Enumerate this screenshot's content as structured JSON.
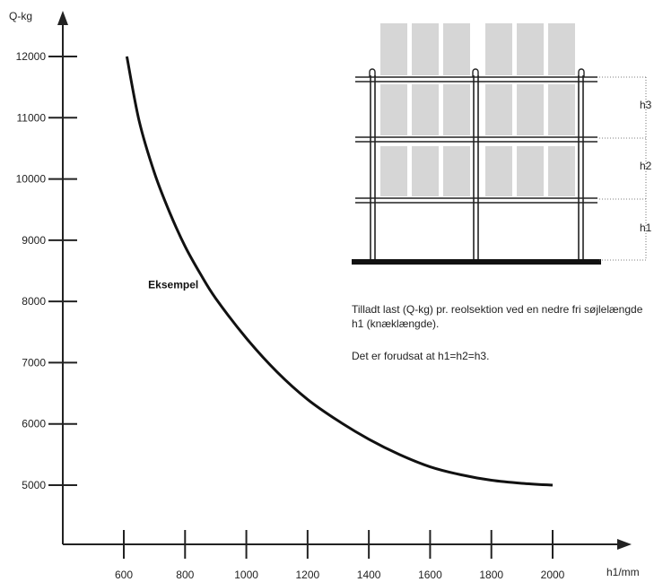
{
  "chart_data": {
    "type": "line",
    "title": "",
    "xlabel": "h1/mm",
    "ylabel": "Q-kg",
    "xlim": [
      430,
      2230
    ],
    "ylim": [
      4050,
      12800
    ],
    "x_ticks": [
      600,
      800,
      1000,
      1200,
      1400,
      1600,
      1800,
      2000
    ],
    "x_tick_labels": [
      "600",
      "800",
      "1000",
      "1200",
      "1400",
      "1600",
      "1800",
      "2000"
    ],
    "y_ticks": [
      5000,
      6000,
      7000,
      8000,
      9000,
      10000,
      11000,
      12000
    ],
    "y_tick_labels": [
      "5000",
      "6000",
      "7000",
      "8000",
      "9000",
      "10000",
      "11000",
      "12000"
    ],
    "grid": false,
    "series": [
      {
        "name": "",
        "x": [
          610,
          650,
          700,
          750,
          800,
          850,
          900,
          1000,
          1100,
          1200,
          1300,
          1400,
          1500,
          1600,
          1700,
          1800,
          1900,
          2000
        ],
        "y": [
          12000,
          10950,
          10100,
          9450,
          8900,
          8450,
          8050,
          7400,
          6850,
          6400,
          6050,
          5750,
          5500,
          5300,
          5170,
          5080,
          5030,
          5000
        ]
      }
    ],
    "annotation": {
      "text": "Eksempel",
      "x": 870,
      "y": 8270
    }
  },
  "description": {
    "line1": "Tilladt last (Q-kg) pr. reolsektion ved en nedre fri søjlelængde h1 (knæklængde).",
    "line2": "Det er forudsat at h1=h2=h3."
  },
  "diagram": {
    "labels": [
      "h3",
      "h2",
      "h1"
    ],
    "box_color": "#d6d6d6",
    "frame_color": "#222222"
  }
}
